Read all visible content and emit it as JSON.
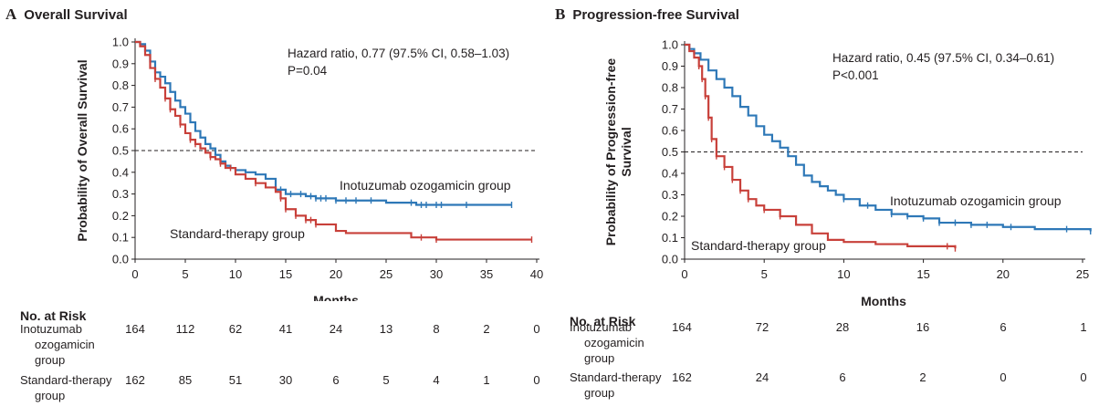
{
  "colors": {
    "inotuzumab": "#2e78b7",
    "standard": "#c8403a",
    "axis": "#231f20"
  },
  "chart_data": [
    {
      "id": "A",
      "panel_letter": "A",
      "title": "Overall Survival",
      "type": "line",
      "xlabel": "Months",
      "ylabel": "Probability of Overall Survival",
      "xlim": [
        0,
        40
      ],
      "ylim": [
        0,
        1.0
      ],
      "x_ticks": [
        "0",
        "5",
        "10",
        "15",
        "20",
        "25",
        "30",
        "35",
        "40"
      ],
      "y_ticks": [
        "0.0",
        "0.1",
        "0.2",
        "0.3",
        "0.4",
        "0.5",
        "0.6",
        "0.7",
        "0.8",
        "0.9",
        "1.0"
      ],
      "reference_line": 0.5,
      "annotation_lines": [
        "Hazard ratio, 0.77 (97.5% CI, 0.58–1.03)",
        "P=0.04"
      ],
      "series": [
        {
          "name": "Inotuzumab ozogamicin group",
          "color_key": "inotuzumab",
          "x": [
            0,
            0.5,
            1,
            1.5,
            2,
            2.5,
            3,
            3.5,
            4,
            4.5,
            5,
            5.5,
            6,
            6.5,
            7,
            7.5,
            8,
            8.5,
            9,
            9.5,
            10,
            11,
            12,
            13,
            14,
            15,
            16,
            17,
            18,
            19,
            20,
            22,
            25,
            28,
            30,
            33,
            35,
            37.5
          ],
          "y": [
            1.0,
            0.99,
            0.96,
            0.91,
            0.86,
            0.84,
            0.81,
            0.77,
            0.73,
            0.7,
            0.67,
            0.63,
            0.59,
            0.56,
            0.53,
            0.51,
            0.48,
            0.45,
            0.43,
            0.42,
            0.41,
            0.4,
            0.39,
            0.37,
            0.32,
            0.3,
            0.3,
            0.29,
            0.28,
            0.28,
            0.27,
            0.27,
            0.26,
            0.25,
            0.25,
            0.25,
            0.25,
            0.25
          ],
          "censor_x": [
            14.5,
            15.5,
            16.5,
            17.5,
            18,
            18.5,
            19,
            20,
            21,
            22,
            23.5,
            27.5,
            28.5,
            29,
            30,
            30.5,
            33,
            37.5
          ]
        },
        {
          "name": "Standard-therapy group",
          "color_key": "standard",
          "x": [
            0,
            0.5,
            1,
            1.5,
            2,
            2.5,
            3,
            3.5,
            4,
            4.5,
            5,
            5.5,
            6,
            6.5,
            7,
            7.5,
            8,
            8.5,
            9,
            10,
            11,
            12,
            13,
            14,
            14.5,
            15,
            16,
            17,
            18,
            20,
            21,
            24,
            27.5,
            30,
            35,
            39.5
          ],
          "y": [
            1.0,
            0.98,
            0.94,
            0.88,
            0.83,
            0.79,
            0.74,
            0.69,
            0.66,
            0.62,
            0.58,
            0.55,
            0.53,
            0.51,
            0.49,
            0.47,
            0.46,
            0.44,
            0.42,
            0.39,
            0.37,
            0.35,
            0.33,
            0.31,
            0.28,
            0.23,
            0.2,
            0.18,
            0.16,
            0.13,
            0.12,
            0.12,
            0.1,
            0.09,
            0.09,
            0.09
          ],
          "censor_x": [
            2,
            3,
            3.5,
            4.5,
            5.5,
            6,
            7.5,
            8.5,
            9.5,
            12,
            14.5,
            15,
            16,
            17,
            17.5,
            18,
            28.5,
            30,
            39.5
          ]
        }
      ],
      "series_labels": [
        "Inotuzumab ozogamicin group",
        "Standard-therapy group"
      ],
      "risk_table": {
        "title": "No. at Risk",
        "rows": [
          {
            "label_lines": [
              "Inotuzumab",
              "ozogamicin",
              "group"
            ],
            "values": [
              "164",
              "112",
              "62",
              "41",
              "24",
              "13",
              "8",
              "2",
              "0"
            ]
          },
          {
            "label_lines": [
              "Standard-therapy",
              "group"
            ],
            "values": [
              "162",
              "85",
              "51",
              "30",
              "6",
              "5",
              "4",
              "1",
              "0"
            ]
          }
        ]
      }
    },
    {
      "id": "B",
      "panel_letter": "B",
      "title": "Progression-free Survival",
      "type": "line",
      "xlabel": "Months",
      "ylabel_lines": [
        "Probability of Progression-free",
        "Survival"
      ],
      "xlim": [
        0,
        25
      ],
      "ylim": [
        0,
        1.0
      ],
      "x_ticks": [
        "0",
        "5",
        "10",
        "15",
        "20",
        "25"
      ],
      "y_ticks": [
        "0.0",
        "0.1",
        "0.2",
        "0.3",
        "0.4",
        "0.5",
        "0.6",
        "0.7",
        "0.8",
        "0.9",
        "1.0"
      ],
      "reference_line": 0.5,
      "annotation_lines": [
        "Hazard ratio, 0.45 (97.5% CI, 0.34–0.61)",
        "P<0.001"
      ],
      "series": [
        {
          "name": "Inotuzumab ozogamicin group",
          "color_key": "inotuzumab",
          "x": [
            0,
            0.3,
            0.6,
            1,
            1.5,
            2,
            2.5,
            3,
            3.5,
            4,
            4.5,
            5,
            5.5,
            6,
            6.5,
            7,
            7.5,
            8,
            8.5,
            9,
            9.5,
            10,
            11,
            12,
            13,
            14,
            15,
            16,
            18,
            20,
            22,
            25.5
          ],
          "y": [
            1.0,
            0.98,
            0.96,
            0.93,
            0.88,
            0.84,
            0.8,
            0.76,
            0.71,
            0.67,
            0.62,
            0.58,
            0.55,
            0.52,
            0.48,
            0.44,
            0.39,
            0.36,
            0.34,
            0.32,
            0.3,
            0.28,
            0.25,
            0.23,
            0.21,
            0.2,
            0.19,
            0.17,
            0.16,
            0.15,
            0.14,
            0.13
          ],
          "censor_x": [
            10,
            11.5,
            13,
            14,
            15,
            16,
            17,
            18,
            19,
            20.5,
            24,
            25.5
          ]
        },
        {
          "name": "Standard-therapy group",
          "color_key": "standard",
          "x": [
            0,
            0.3,
            0.6,
            0.9,
            1.1,
            1.3,
            1.5,
            1.7,
            2,
            2.5,
            3,
            3.5,
            4,
            4.5,
            5,
            6,
            7,
            8,
            9,
            10,
            12,
            14,
            17
          ],
          "y": [
            1.0,
            0.97,
            0.94,
            0.9,
            0.84,
            0.76,
            0.66,
            0.56,
            0.48,
            0.43,
            0.37,
            0.32,
            0.28,
            0.25,
            0.23,
            0.2,
            0.16,
            0.12,
            0.09,
            0.08,
            0.07,
            0.06,
            0.05
          ],
          "censor_x": [
            0.9,
            1.1,
            1.3,
            1.5,
            1.7,
            2,
            2.5,
            3,
            3.5,
            4,
            5,
            6,
            16.5,
            17
          ]
        }
      ],
      "series_labels": [
        "Inotuzumab ozogamicin group",
        "Standard-therapy group"
      ],
      "risk_table": {
        "title": "No. at Risk",
        "rows": [
          {
            "label_lines": [
              "Inotuzumab",
              "ozogamicin",
              "group"
            ],
            "values": [
              "164",
              "72",
              "28",
              "16",
              "6",
              "1"
            ]
          },
          {
            "label_lines": [
              "Standard-therapy",
              "group"
            ],
            "values": [
              "162",
              "24",
              "6",
              "2",
              "0",
              "0"
            ]
          }
        ]
      }
    }
  ]
}
